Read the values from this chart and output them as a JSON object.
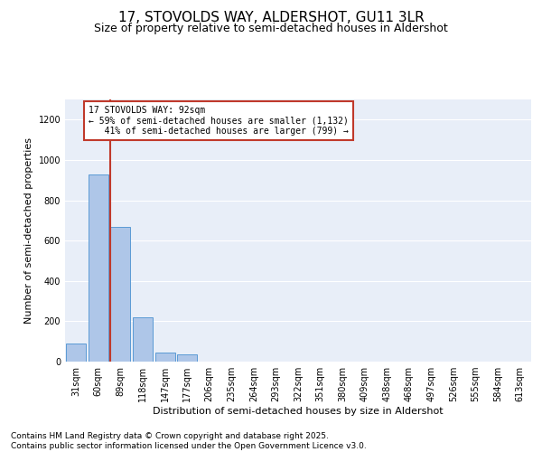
{
  "title1": "17, STOVOLDS WAY, ALDERSHOT, GU11 3LR",
  "title2": "Size of property relative to semi-detached houses in Aldershot",
  "xlabel": "Distribution of semi-detached houses by size in Aldershot",
  "ylabel": "Number of semi-detached properties",
  "categories": [
    "31sqm",
    "60sqm",
    "89sqm",
    "118sqm",
    "147sqm",
    "177sqm",
    "206sqm",
    "235sqm",
    "264sqm",
    "293sqm",
    "322sqm",
    "351sqm",
    "380sqm",
    "409sqm",
    "438sqm",
    "468sqm",
    "497sqm",
    "526sqm",
    "555sqm",
    "584sqm",
    "613sqm"
  ],
  "values": [
    90,
    930,
    670,
    220,
    45,
    35,
    0,
    0,
    0,
    0,
    0,
    0,
    0,
    0,
    0,
    0,
    0,
    0,
    0,
    0,
    0
  ],
  "bar_color": "#aec6e8",
  "bar_edge_color": "#5b9bd5",
  "vline_color": "#c0392b",
  "annotation_text": "17 STOVOLDS WAY: 92sqm\n← 59% of semi-detached houses are smaller (1,132)\n   41% of semi-detached houses are larger (799) →",
  "annotation_box_color": "#c0392b",
  "ylim": [
    0,
    1300
  ],
  "yticks": [
    0,
    200,
    400,
    600,
    800,
    1000,
    1200
  ],
  "background_color": "#e8eef8",
  "footer": "Contains HM Land Registry data © Crown copyright and database right 2025.\nContains public sector information licensed under the Open Government Licence v3.0.",
  "title1_fontsize": 11,
  "title2_fontsize": 9,
  "axis_label_fontsize": 8,
  "tick_fontsize": 7,
  "footer_fontsize": 6.5
}
